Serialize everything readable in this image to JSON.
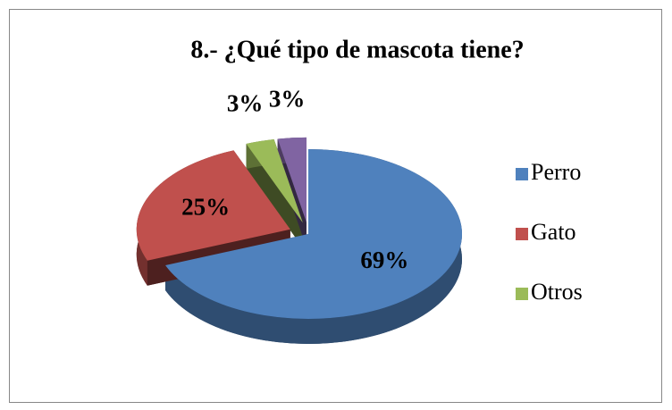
{
  "chart_data": {
    "type": "pie",
    "title": "8.-  ¿Qué tipo de mascota tiene?",
    "categories": [
      "Perro",
      "Gato",
      "Otros",
      null
    ],
    "values": [
      69,
      25,
      3,
      3
    ],
    "value_labels": [
      "69%",
      "25%",
      "3%",
      "3%"
    ],
    "colors": [
      "#4f81bd",
      "#c0504d",
      "#9bbb59",
      "#8064a2"
    ],
    "legend": "right"
  }
}
